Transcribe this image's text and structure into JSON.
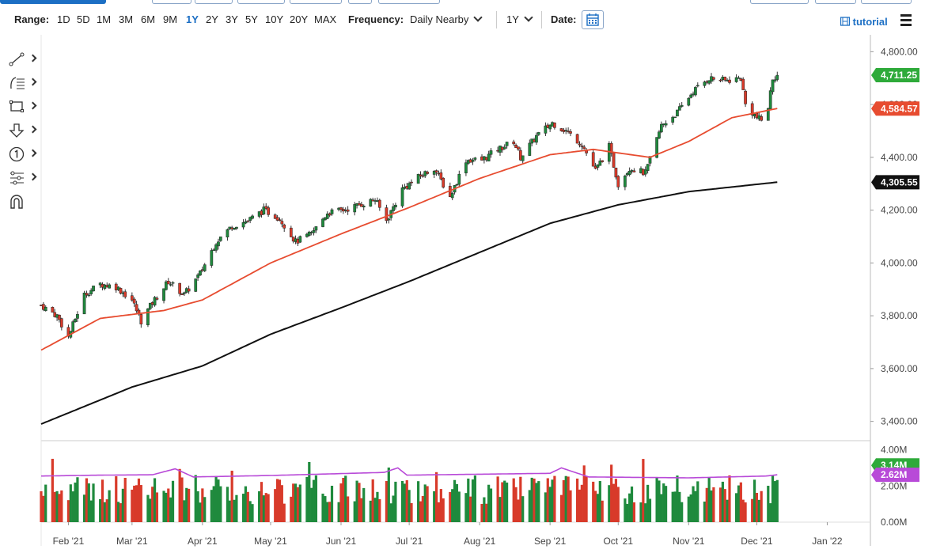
{
  "toolbar": {
    "range_label": "Range:",
    "ranges": [
      "1D",
      "5D",
      "1M",
      "3M",
      "6M",
      "9M",
      "1Y",
      "2Y",
      "3Y",
      "5Y",
      "10Y",
      "20Y",
      "MAX"
    ],
    "active_range": "1Y",
    "frequency_label": "Frequency:",
    "frequency_value": "Daily Nearby",
    "period_value": "1Y",
    "date_label": "Date:",
    "tutorial_label": "tutorial"
  },
  "icons": {
    "calendar": "calendar-icon",
    "menu": "hamburger-menu-icon",
    "tutorial": "film-icon",
    "tools": [
      "trendline-icon",
      "fibonacci-icon",
      "rectangle-icon",
      "arrow-down-icon",
      "numbered-marker-icon",
      "indicator-settings-icon",
      "magnet-icon"
    ]
  },
  "colors": {
    "up": "#1f8a3d",
    "down": "#d83a2a",
    "ma50": "#e74c30",
    "ma200": "#111111",
    "volume_avg": "#b84ad8",
    "badge_last": "#2eaa3a",
    "badge_ma50": "#e74c30",
    "badge_ma200": "#111111",
    "badge_vol_avg": "#b84ad8"
  },
  "chart_data": {
    "type": "candlestick",
    "price_ticks": [
      "4,800.00",
      "4,600.00",
      "4,400.00",
      "4,200.00",
      "4,000.00",
      "3,800.00",
      "3,600.00",
      "3,400.00"
    ],
    "price_tick_values": [
      4800,
      4600,
      4400,
      4200,
      4000,
      3800,
      3600,
      3400
    ],
    "ylim": [
      3330,
      4840
    ],
    "x_tick_labels": [
      "Feb '21",
      "Mar '21",
      "Apr '21",
      "May '21",
      "Jun '21",
      "Jul '21",
      "Aug '21",
      "Sep '21",
      "Oct '21",
      "Nov '21",
      "Dec '21",
      "Jan '22"
    ],
    "x_tick_dates": [
      "2021-02-01",
      "2021-03-01",
      "2021-04-01",
      "2021-05-01",
      "2021-06-01",
      "2021-07-01",
      "2021-08-01",
      "2021-09-01",
      "2021-10-01",
      "2021-11-01",
      "2021-12-01",
      "2022-01-01"
    ],
    "x_range": [
      "2021-01-20",
      "2022-01-20"
    ],
    "last_date": "2021-12-10",
    "last_price": "4,711.25",
    "last_price_value": 4711.25,
    "ma50_value": "4,584.57",
    "ma50_value_num": 4584.57,
    "ma200_value": "4,305.55",
    "ma200_value_num": 4305.55,
    "close_path": [
      [
        "2021-01-20",
        3840
      ],
      [
        "2021-01-27",
        3800
      ],
      [
        "2021-02-01",
        3720
      ],
      [
        "2021-02-08",
        3880
      ],
      [
        "2021-02-15",
        3920
      ],
      [
        "2021-02-22",
        3910
      ],
      [
        "2021-03-01",
        3860
      ],
      [
        "2021-03-05",
        3780
      ],
      [
        "2021-03-10",
        3850
      ],
      [
        "2021-03-17",
        3930
      ],
      [
        "2021-03-24",
        3880
      ],
      [
        "2021-03-31",
        3960
      ],
      [
        "2021-04-07",
        4080
      ],
      [
        "2021-04-14",
        4140
      ],
      [
        "2021-04-21",
        4160
      ],
      [
        "2021-04-28",
        4200
      ],
      [
        "2021-05-05",
        4170
      ],
      [
        "2021-05-12",
        4080
      ],
      [
        "2021-05-19",
        4110
      ],
      [
        "2021-05-26",
        4190
      ],
      [
        "2021-06-02",
        4200
      ],
      [
        "2021-06-09",
        4220
      ],
      [
        "2021-06-16",
        4240
      ],
      [
        "2021-06-21",
        4160
      ],
      [
        "2021-06-28",
        4280
      ],
      [
        "2021-07-06",
        4330
      ],
      [
        "2021-07-12",
        4360
      ],
      [
        "2021-07-19",
        4250
      ],
      [
        "2021-07-26",
        4390
      ],
      [
        "2021-08-02",
        4390
      ],
      [
        "2021-08-09",
        4430
      ],
      [
        "2021-08-16",
        4460
      ],
      [
        "2021-08-19",
        4400
      ],
      [
        "2021-08-26",
        4480
      ],
      [
        "2021-09-02",
        4530
      ],
      [
        "2021-09-08",
        4500
      ],
      [
        "2021-09-15",
        4450
      ],
      [
        "2021-09-21",
        4350
      ],
      [
        "2021-09-27",
        4440
      ],
      [
        "2021-10-01",
        4300
      ],
      [
        "2021-10-06",
        4360
      ],
      [
        "2021-10-13",
        4340
      ],
      [
        "2021-10-20",
        4520
      ],
      [
        "2021-10-27",
        4570
      ],
      [
        "2021-11-03",
        4650
      ],
      [
        "2021-11-10",
        4700
      ],
      [
        "2021-11-17",
        4690
      ],
      [
        "2021-11-24",
        4700
      ],
      [
        "2021-11-26",
        4600
      ],
      [
        "2021-12-01",
        4550
      ],
      [
        "2021-12-03",
        4540
      ],
      [
        "2021-12-06",
        4590
      ],
      [
        "2021-12-08",
        4700
      ],
      [
        "2021-12-10",
        4711
      ]
    ],
    "ma50_path": [
      [
        "2021-01-20",
        3670
      ],
      [
        "2021-02-15",
        3790
      ],
      [
        "2021-03-15",
        3820
      ],
      [
        "2021-04-01",
        3860
      ],
      [
        "2021-05-01",
        4000
      ],
      [
        "2021-06-01",
        4110
      ],
      [
        "2021-07-01",
        4210
      ],
      [
        "2021-08-01",
        4320
      ],
      [
        "2021-09-01",
        4410
      ],
      [
        "2021-09-20",
        4430
      ],
      [
        "2021-10-15",
        4400
      ],
      [
        "2021-11-01",
        4460
      ],
      [
        "2021-11-20",
        4550
      ],
      [
        "2021-12-10",
        4585
      ]
    ],
    "ma200_path": [
      [
        "2021-01-20",
        3390
      ],
      [
        "2021-03-01",
        3530
      ],
      [
        "2021-04-01",
        3610
      ],
      [
        "2021-05-01",
        3730
      ],
      [
        "2021-06-01",
        3830
      ],
      [
        "2021-07-01",
        3930
      ],
      [
        "2021-08-01",
        4040
      ],
      [
        "2021-09-01",
        4150
      ],
      [
        "2021-10-01",
        4220
      ],
      [
        "2021-11-01",
        4270
      ],
      [
        "2021-12-10",
        4306
      ]
    ],
    "volume": {
      "ticks": [
        "4.00M",
        "2.00M",
        "0.00M"
      ],
      "tick_values": [
        4.0,
        2.0,
        0.0
      ],
      "ylim": [
        0,
        4.2
      ],
      "last_value": "3.14M",
      "last_value_num": 3.14,
      "avg_value": "2.62M",
      "avg_value_num": 2.62,
      "avg_path": [
        [
          "2021-01-20",
          2.55
        ],
        [
          "2021-02-15",
          2.6
        ],
        [
          "2021-03-10",
          2.62
        ],
        [
          "2021-03-20",
          2.95
        ],
        [
          "2021-03-28",
          2.5
        ],
        [
          "2021-05-01",
          2.58
        ],
        [
          "2021-06-20",
          2.75
        ],
        [
          "2021-06-26",
          3.0
        ],
        [
          "2021-06-30",
          2.6
        ],
        [
          "2021-09-01",
          2.7
        ],
        [
          "2021-09-06",
          3.0
        ],
        [
          "2021-09-18",
          2.5
        ],
        [
          "2021-11-01",
          2.45
        ],
        [
          "2021-12-05",
          2.55
        ],
        [
          "2021-12-10",
          2.62
        ]
      ]
    }
  }
}
